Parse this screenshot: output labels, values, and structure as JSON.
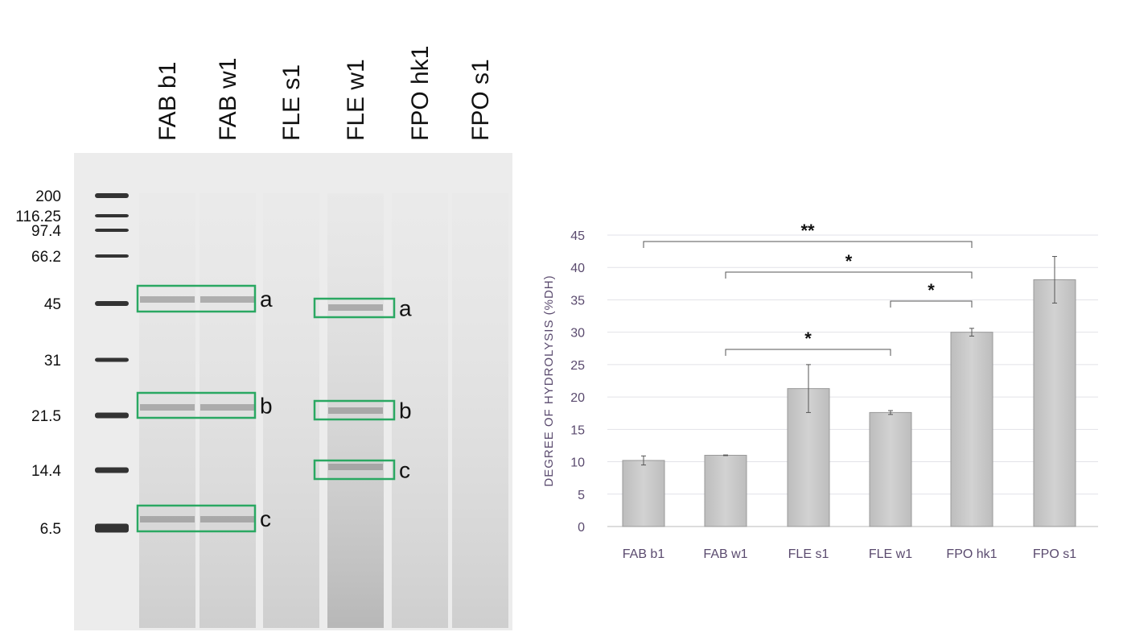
{
  "gel": {
    "lanes": [
      "FAB b1",
      "FAB w1",
      "FLE s1",
      "FLE w1",
      "FPO hk1",
      "FPO s1"
    ],
    "markers": [
      "200",
      "116.25",
      "97.4",
      "66.2",
      "45",
      "31",
      "21.5",
      "14.4",
      "6.5"
    ],
    "band_labels": [
      "a",
      "b",
      "c"
    ],
    "box_color": "#2aa862"
  },
  "chart_data": {
    "type": "bar",
    "categories": [
      "FAB b1",
      "FAB w1",
      "FLE s1",
      "FLE w1",
      "FPO hk1",
      "FPO s1"
    ],
    "values": [
      10.2,
      11.0,
      21.3,
      17.6,
      30.0,
      38.1
    ],
    "errors": [
      0.7,
      0.05,
      3.7,
      0.3,
      0.6,
      3.6
    ],
    "ylabel": "DEGREE OF HYDROLYSIS (%DH)",
    "xlabel": "",
    "ylim": [
      0,
      45
    ],
    "yticks": [
      "0",
      "5",
      "10",
      "15",
      "20",
      "25",
      "30",
      "35",
      "40",
      "45"
    ],
    "grid": true,
    "bar_color": "#c8c8c8",
    "significance": [
      {
        "from": 0,
        "to": 4,
        "label": "**"
      },
      {
        "from": 1,
        "to": 4,
        "label": "*"
      },
      {
        "from": 3,
        "to": 4,
        "label": "*"
      },
      {
        "from": 1,
        "to": 3,
        "label": "*"
      }
    ]
  }
}
